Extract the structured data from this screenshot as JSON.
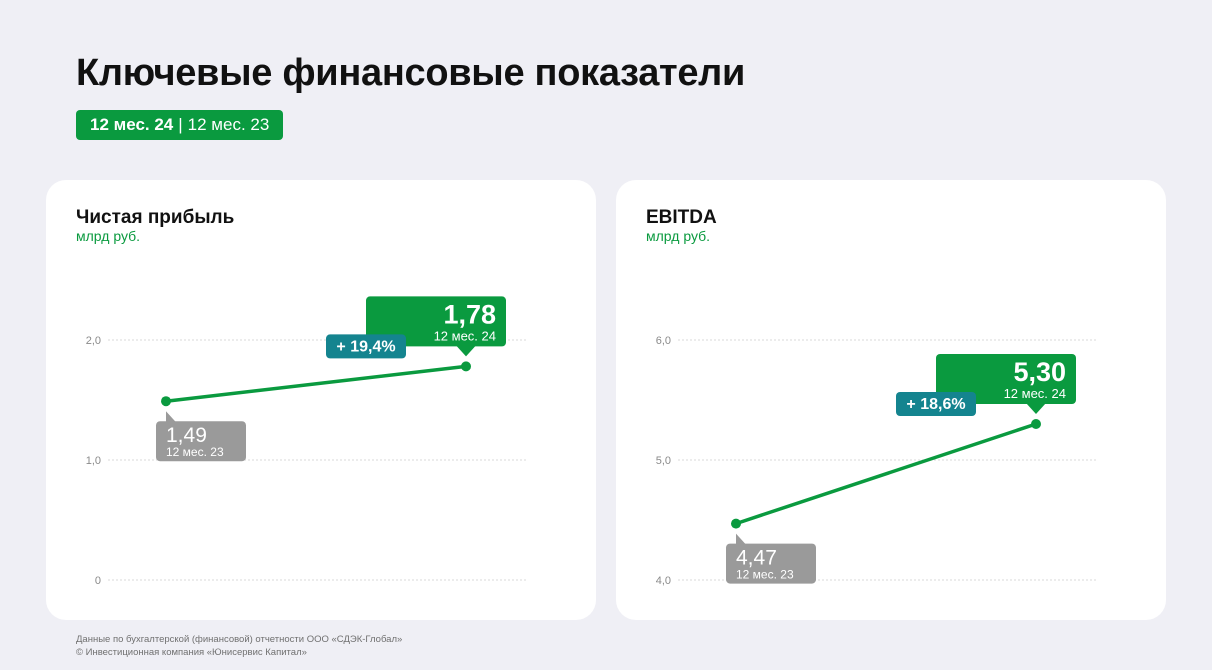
{
  "page": {
    "title": "Ключевые финансовые показатели",
    "period_current": "12 мес. 24",
    "period_separator": "|",
    "period_previous": "12 мес. 23"
  },
  "colors": {
    "accent": "#0a9a3f",
    "previous": "#9a9a9a",
    "change": "#14848f",
    "background": "#efeff5",
    "card": "#ffffff"
  },
  "chart_data": [
    {
      "type": "line",
      "title": "Чистая прибыль",
      "ylabel": "млрд руб.",
      "ylim": [
        0,
        2.0
      ],
      "y_ticks": [
        0,
        1.0,
        2.0
      ],
      "y_tick_labels": [
        "0",
        "1,0",
        "2,0"
      ],
      "grid": true,
      "points": [
        {
          "label": "12 мес. 23",
          "value": 1.49,
          "value_label": "1,49",
          "kind": "previous"
        },
        {
          "label": "12 мес. 24",
          "value": 1.78,
          "value_label": "1,78",
          "kind": "current"
        }
      ],
      "change_label": "+ 19,4%"
    },
    {
      "type": "line",
      "title": "EBITDA",
      "ylabel": "млрд руб.",
      "ylim": [
        4.0,
        6.0
      ],
      "y_ticks": [
        4.0,
        5.0,
        6.0
      ],
      "y_tick_labels": [
        "4,0",
        "5,0",
        "6,0"
      ],
      "grid": true,
      "points": [
        {
          "label": "12 мес. 23",
          "value": 4.47,
          "value_label": "4,47",
          "kind": "previous"
        },
        {
          "label": "12 мес. 24",
          "value": 5.3,
          "value_label": "5,30",
          "kind": "current"
        }
      ],
      "change_label": "+ 18,6%"
    }
  ],
  "footnote": {
    "line1": "Данные по бухгалтерской (финансовой) отчетности ООО «СДЭК-Глобал»",
    "line2": "© Инвестиционная компания «Юнисервис Капитал»"
  }
}
